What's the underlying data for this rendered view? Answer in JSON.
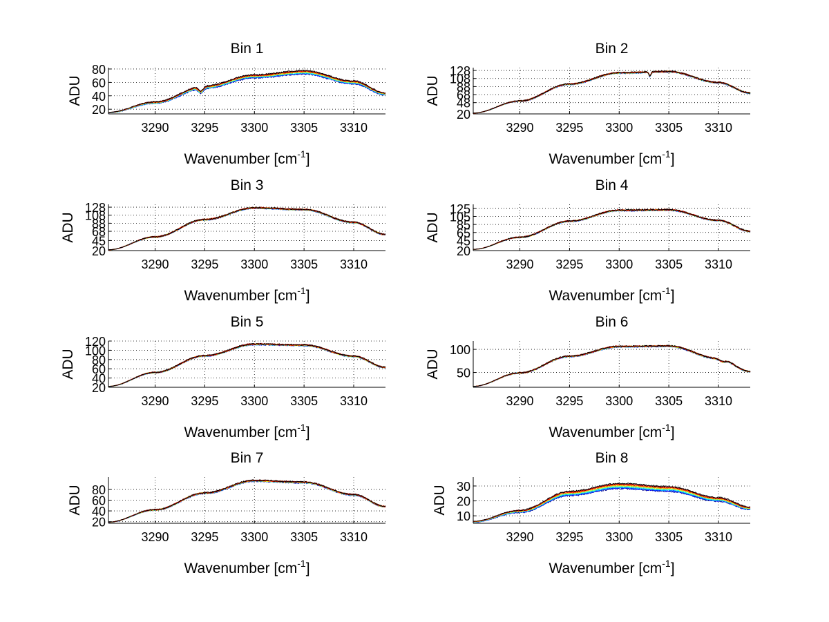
{
  "chart_data": [
    {
      "type": "line",
      "title": "Bin 1",
      "xlabel": "Wavenumber [cm",
      "xlabel_sup": "-1",
      "xlabel_end": "]",
      "ylabel": "ADU",
      "xlim": [
        3285.3,
        3313.2
      ],
      "ylim": [
        13,
        82
      ],
      "xticks": [
        3290,
        3295,
        3300,
        3305,
        3310
      ],
      "yticks": [
        20,
        40,
        60,
        80
      ],
      "grid": true,
      "spread": 3.5,
      "dips": [
        {
          "x": 3294.6,
          "depth": 7,
          "width": 0.35
        }
      ],
      "profile": {
        "x": [
          3285.3,
          3290,
          3295,
          3300,
          3305,
          3310,
          3313.2
        ],
        "y": [
          15,
          30,
          53,
          69,
          75,
          60,
          43
        ]
      }
    },
    {
      "type": "line",
      "title": "Bin 2",
      "xlabel": "Wavenumber [cm",
      "xlabel_sup": "-1",
      "xlabel_end": "]",
      "ylabel": "ADU",
      "xlim": [
        3285.3,
        3313.2
      ],
      "ylim": [
        20,
        135
      ],
      "xticks": [
        3290,
        3295,
        3300,
        3305,
        3310
      ],
      "yticks": [
        20,
        48,
        68,
        88,
        108,
        128
      ],
      "ytick_labels": [
        "20",
        "48",
        "68",
        "88",
        "108",
        "128"
      ],
      "grid": true,
      "spread": 1.0,
      "dips": [
        {
          "x": 3303.1,
          "depth": 10,
          "width": 0.15
        }
      ],
      "profile": {
        "x": [
          3285.3,
          3290,
          3295,
          3300,
          3305,
          3310,
          3313.2
        ],
        "y": [
          22,
          52,
          94,
          122,
          125,
          98,
          72
        ]
      }
    },
    {
      "type": "line",
      "title": "Bin 3",
      "xlabel": "Wavenumber [cm",
      "xlabel_sup": "-1",
      "xlabel_end": "]",
      "ylabel": "ADU",
      "xlim": [
        3285.3,
        3313.2
      ],
      "ylim": [
        20,
        135
      ],
      "xticks": [
        3290,
        3295,
        3300,
        3305,
        3310
      ],
      "yticks": [
        20,
        45,
        68,
        88,
        108,
        128
      ],
      "ytick_labels": [
        "20",
        "45",
        "68",
        "88",
        "108",
        "128"
      ],
      "grid": true,
      "spread": 1.0,
      "dips": [],
      "profile": {
        "x": [
          3285.3,
          3290,
          3295,
          3300,
          3305,
          3310,
          3313.2
        ],
        "y": [
          22,
          54,
          97,
          126,
          122,
          90,
          60
        ]
      }
    },
    {
      "type": "line",
      "title": "Bin 4",
      "xlabel": "Wavenumber [cm",
      "xlabel_sup": "-1",
      "xlabel_end": "]",
      "ylabel": "ADU",
      "xlim": [
        3285.3,
        3313.2
      ],
      "ylim": [
        20,
        135
      ],
      "xticks": [
        3290,
        3295,
        3300,
        3305,
        3310
      ],
      "yticks": [
        20,
        45,
        65,
        85,
        105,
        125
      ],
      "ytick_labels": [
        "20",
        "45",
        "65",
        "85",
        "105",
        "125"
      ],
      "grid": true,
      "spread": 1.0,
      "dips": [],
      "profile": {
        "x": [
          3285.3,
          3290,
          3295,
          3300,
          3305,
          3310,
          3313.2
        ],
        "y": [
          23,
          53,
          93,
          120,
          121,
          95,
          68
        ]
      }
    },
    {
      "type": "line",
      "title": "Bin 5",
      "xlabel": "Wavenumber [cm",
      "xlabel_sup": "-1",
      "xlabel_end": "]",
      "ylabel": "ADU",
      "xlim": [
        3285.3,
        3313.2
      ],
      "ylim": [
        20,
        120
      ],
      "xticks": [
        3290,
        3295,
        3300,
        3305,
        3310
      ],
      "yticks": [
        20,
        40,
        60,
        80,
        100,
        120
      ],
      "ytick_labels": [
        "20",
        "40",
        "60",
        "80",
        "100",
        "120"
      ],
      "grid": true,
      "spread": 1.0,
      "dips": [],
      "profile": {
        "x": [
          3285.3,
          3290,
          3295,
          3300,
          3305,
          3310,
          3313.2
        ],
        "y": [
          22,
          52,
          88,
          113,
          111,
          87,
          63
        ]
      }
    },
    {
      "type": "line",
      "title": "Bin 6",
      "xlabel": "Wavenumber [cm",
      "xlabel_sup": "-1",
      "xlabel_end": "]",
      "ylabel": "ADU",
      "xlim": [
        3285.3,
        3313.2
      ],
      "ylim": [
        18,
        118
      ],
      "xticks": [
        3290,
        3295,
        3300,
        3305,
        3310
      ],
      "yticks": [
        50,
        100
      ],
      "grid": true,
      "spread": 1.0,
      "dips": [
        {
          "x": 3310.4,
          "depth": 6,
          "width": 0.4
        }
      ],
      "profile": {
        "x": [
          3285.3,
          3290,
          3295,
          3300,
          3305,
          3310,
          3313.2
        ],
        "y": [
          20,
          49,
          85,
          106,
          107,
          80,
          52
        ]
      }
    },
    {
      "type": "line",
      "title": "Bin 7",
      "xlabel": "Wavenumber [cm",
      "xlabel_sup": "-1",
      "xlabel_end": "]",
      "ylabel": "ADU",
      "xlim": [
        3285.3,
        3313.2
      ],
      "ylim": [
        17,
        103
      ],
      "xticks": [
        3290,
        3295,
        3300,
        3305,
        3310
      ],
      "yticks": [
        20,
        40,
        60,
        80
      ],
      "grid": true,
      "spread": 1.2,
      "dips": [],
      "profile": {
        "x": [
          3285.3,
          3290,
          3295,
          3300,
          3305,
          3310,
          3313.2
        ],
        "y": [
          19,
          42,
          73,
          96,
          93,
          70,
          48
        ]
      }
    },
    {
      "type": "line",
      "title": "Bin 8",
      "xlabel": "Wavenumber [cm",
      "xlabel_sup": "-1",
      "xlabel_end": "]",
      "ylabel": "ADU",
      "xlim": [
        3285.3,
        3313.2
      ],
      "ylim": [
        5,
        36
      ],
      "xticks": [
        3290,
        3295,
        3300,
        3305,
        3310
      ],
      "yticks": [
        10,
        20,
        30
      ],
      "grid": true,
      "spread": 2.6,
      "dips": [],
      "profile": {
        "x": [
          3285.3,
          3290,
          3295,
          3300,
          3305,
          3310,
          3313.2
        ],
        "y": [
          6,
          13,
          25,
          30,
          28,
          21,
          15
        ]
      }
    }
  ],
  "series_colors": [
    "#00008f",
    "#0000ff",
    "#0050ff",
    "#00b0ff",
    "#10ffef",
    "#70ff8f",
    "#d0ff30",
    "#ffc000",
    "#ff6000",
    "#ff0000",
    "#800000",
    "#000000"
  ]
}
